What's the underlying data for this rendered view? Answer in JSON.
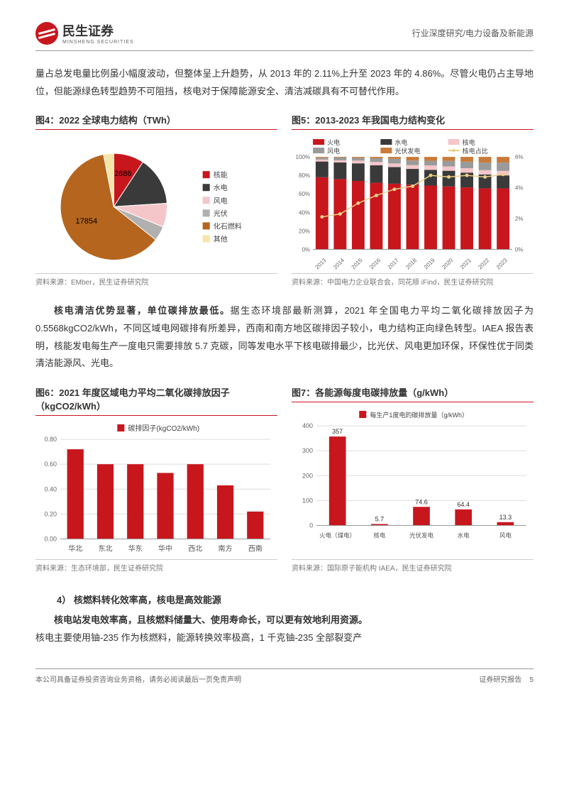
{
  "header": {
    "brand": "民生证券",
    "brand_sub": "MINSHENG SECURITIES",
    "right": "行业深度研究/电力设备及新能源"
  },
  "para1": "量占总发电量比例虽小幅度波动，但整体呈上升趋势，从 2013 年的 2.11%上升至 2023 年的 4.86%。尽管火电仍占主导地位，但能源绿色转型趋势不可阻挡，核电对于保障能源安全、清洁减碳具有不可替代作用。",
  "fig4": {
    "title": "图4：2022 全球电力结构（TWh）",
    "type": "pie",
    "labels": [
      "核能",
      "水电",
      "风电",
      "光伏",
      "化石燃料",
      "其他"
    ],
    "values": [
      2686,
      4300,
      2100,
      1300,
      17854,
      900
    ],
    "colors": [
      "#c8161d",
      "#3a3a3a",
      "#f4c6c9",
      "#b0b0b0",
      "#b5651d",
      "#f5e6a8"
    ],
    "show_labels": {
      "核能": "2686",
      "化石燃料": "17854"
    },
    "source": "资料来源：EMber，民生证券研究院"
  },
  "fig5": {
    "title": "图5：2013-2023 年我国电力结构变化",
    "type": "stacked_bar_line",
    "years": [
      "2013",
      "2014",
      "2015",
      "2016",
      "2017",
      "2018",
      "2019",
      "2020",
      "2021",
      "2022",
      "2023"
    ],
    "series": {
      "火电": {
        "color": "#c8161d",
        "vals": [
          78,
          76,
          74,
          72,
          71,
          70,
          69,
          68,
          67,
          66,
          66
        ]
      },
      "水电": {
        "color": "#3a3a3a",
        "vals": [
          17,
          18,
          19,
          19,
          18,
          17,
          17,
          17,
          16,
          15,
          14
        ]
      },
      "核电": {
        "color": "#f4c6c9",
        "vals": [
          2.1,
          2.3,
          3.0,
          3.5,
          3.9,
          4.1,
          4.8,
          4.7,
          4.8,
          4.7,
          4.86
        ]
      },
      "风电": {
        "color": "#9a9a9a",
        "vals": [
          2,
          3,
          3,
          4,
          5,
          5,
          5,
          6,
          7,
          8,
          9
        ]
      },
      "光伏发电": {
        "color": "#c87b3a",
        "vals": [
          0.9,
          0.7,
          1,
          1.5,
          2.1,
          3.9,
          4.2,
          4.3,
          5.2,
          6.3,
          6.14
        ]
      }
    },
    "line": {
      "name": "核电占比",
      "color": "#e8d088",
      "vals": [
        2.11,
        2.3,
        3.0,
        3.5,
        3.9,
        4.1,
        4.8,
        4.7,
        4.8,
        4.7,
        4.86
      ]
    },
    "y1_max": 100,
    "y1_step": 20,
    "y2_max": 6,
    "y2_step": 2,
    "source": "资料来源：中国电力企业联合会，同花顺 iFind，民生证券研究院"
  },
  "para2_bold": "核电清洁优势显著，单位碳排放最低。",
  "para2": "据生态环境部最新测算，2021 年全国电力平均二氧化碳排放因子为 0.5568kgCO2/kWh，不同区域电网碳排有所差异，西南和南方地区碳排因子较小，电力结构正向绿色转型。IAEA 报告表明，核能发电每生产一度电只需要排放 5.7 克碳，同等发电水平下核电碳排最少，比光伏、风电更加环保，环保性优于同类清洁能源风、光电。",
  "fig6": {
    "title": "图6：2021 年度区域电力平均二氧化碳排放因子（kgCO2/kWh）",
    "type": "bar",
    "legend": "碳排因子(kgCO2/kWh)",
    "categories": [
      "华北",
      "东北",
      "华东",
      "华中",
      "西北",
      "南方",
      "西南"
    ],
    "values": [
      0.72,
      0.6,
      0.6,
      0.53,
      0.6,
      0.43,
      0.22
    ],
    "color": "#c8161d",
    "ymax": 0.8,
    "ystep": 0.2,
    "source": "资料来源：生态环境部，民生证券研究院"
  },
  "fig7": {
    "title": "图7：各能源每度电碳排放量（g/kWh）",
    "type": "bar",
    "legend": "每生产1度电的碳排放量（g/kWh）",
    "categories": [
      "火电（煤电）",
      "核电",
      "光伏发电",
      "水电",
      "风电"
    ],
    "values": [
      357,
      5.7,
      74.6,
      64.4,
      13.3
    ],
    "color": "#c8161d",
    "ymax": 400,
    "ystep": 100,
    "source": "资料来源：国际原子能机构 IAEA，民生证券研究院"
  },
  "section4": "4） 核燃料转化效率高，核电是高效能源",
  "para3_bold": "核电站发电效率高，且核燃料储量大、使用寿命长，可以更有效地利用资源。",
  "para3": "核电主要使用铀-235 作为核燃料，能源转换效率极高，1 千克铀-235 全部裂变产",
  "footer": {
    "left": "本公司具备证券投资咨询业务资格，请务必阅读最后一页免责声明",
    "right": "证券研究报告",
    "page": "5"
  }
}
